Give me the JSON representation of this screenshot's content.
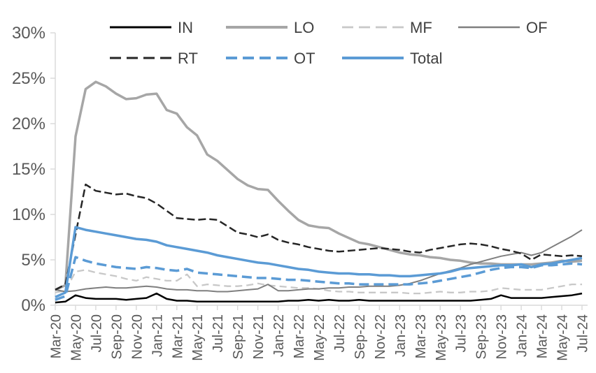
{
  "chart_data": {
    "type": "line",
    "title": "",
    "xlabel": "",
    "ylabel": "",
    "ylim": [
      0,
      30
    ],
    "y_tick_step": 5,
    "y_tick_suffix": "%",
    "grid": false,
    "legend_position": "top",
    "legend_rows": [
      [
        "IN",
        "LO",
        "MF",
        "OF"
      ],
      [
        "RT",
        "OT",
        "Total"
      ]
    ],
    "axis_color": "#D9D9D9",
    "tick_label_color": "#595959",
    "legend_text_color": "#404040",
    "background": "#FFFFFF",
    "x_tick_every": 2,
    "x": [
      "Mar-20",
      "Apr-20",
      "May-20",
      "Jun-20",
      "Jul-20",
      "Aug-20",
      "Sep-20",
      "Oct-20",
      "Nov-20",
      "Dec-20",
      "Jan-21",
      "Feb-21",
      "Mar-21",
      "Apr-21",
      "May-21",
      "Jun-21",
      "Jul-21",
      "Aug-21",
      "Sep-21",
      "Oct-21",
      "Nov-21",
      "Dec-21",
      "Jan-22",
      "Feb-22",
      "Mar-22",
      "Apr-22",
      "May-22",
      "Jun-22",
      "Jul-22",
      "Aug-22",
      "Sep-22",
      "Oct-22",
      "Nov-22",
      "Dec-22",
      "Jan-23",
      "Feb-23",
      "Mar-23",
      "Apr-23",
      "May-23",
      "Jun-23",
      "Jul-23",
      "Aug-23",
      "Sep-23",
      "Oct-23",
      "Nov-23",
      "Dec-23",
      "Jan-24",
      "Feb-24",
      "Mar-24",
      "Apr-24",
      "May-24",
      "Jun-24",
      "Jul-24"
    ],
    "series": [
      {
        "name": "IN",
        "color": "#000000",
        "style": "solid",
        "dash": "",
        "width": 2.5,
        "values": [
          0.3,
          0.4,
          1.1,
          0.8,
          0.7,
          0.7,
          0.7,
          0.6,
          0.7,
          0.8,
          1.3,
          0.7,
          0.5,
          0.5,
          0.4,
          0.4,
          0.4,
          0.4,
          0.4,
          0.4,
          0.4,
          0.4,
          0.4,
          0.5,
          0.5,
          0.6,
          0.5,
          0.6,
          0.5,
          0.5,
          0.6,
          0.5,
          0.5,
          0.5,
          0.5,
          0.5,
          0.5,
          0.5,
          0.5,
          0.5,
          0.5,
          0.5,
          0.6,
          0.7,
          1.1,
          0.8,
          0.8,
          0.8,
          0.8,
          0.9,
          1.0,
          1.1,
          1.3
        ]
      },
      {
        "name": "LO",
        "color": "#A6A6A6",
        "style": "solid",
        "dash": "",
        "width": 3.5,
        "values": [
          1.7,
          2.2,
          18.6,
          23.8,
          24.6,
          24.1,
          23.3,
          22.7,
          22.8,
          23.2,
          23.3,
          21.5,
          21.1,
          19.6,
          18.7,
          16.6,
          15.9,
          14.9,
          13.9,
          13.2,
          12.8,
          12.7,
          11.5,
          10.4,
          9.4,
          8.8,
          8.6,
          8.5,
          7.9,
          7.4,
          6.9,
          6.7,
          6.4,
          6.1,
          5.8,
          5.6,
          5.5,
          5.3,
          5.2,
          5.0,
          4.9,
          4.7,
          4.6,
          4.6,
          4.5,
          4.5,
          4.5,
          4.5,
          4.6,
          4.7,
          4.9,
          4.8,
          4.9
        ]
      },
      {
        "name": "MF",
        "color": "#C8C8C8",
        "style": "dashed",
        "dash": "10,6",
        "width": 2.3,
        "values": [
          1.4,
          1.6,
          3.7,
          3.9,
          3.6,
          3.4,
          3.2,
          2.9,
          2.7,
          3.1,
          2.9,
          2.7,
          2.7,
          3.4,
          2.1,
          2.3,
          2.2,
          2.1,
          2.1,
          2.2,
          2.4,
          2.2,
          2.1,
          2.0,
          1.9,
          1.9,
          1.8,
          1.6,
          1.5,
          1.5,
          1.4,
          1.4,
          1.4,
          1.4,
          1.4,
          1.3,
          1.3,
          1.4,
          1.5,
          1.4,
          1.4,
          1.5,
          1.5,
          1.6,
          1.9,
          1.8,
          1.7,
          1.7,
          1.7,
          1.9,
          2.1,
          2.3,
          2.3
        ]
      },
      {
        "name": "OF",
        "color": "#7F7F7F",
        "style": "solid",
        "dash": "",
        "width": 2,
        "values": [
          1.7,
          1.5,
          1.6,
          1.8,
          1.9,
          2.0,
          1.9,
          1.9,
          2.0,
          2.1,
          2.0,
          1.8,
          1.7,
          1.7,
          1.6,
          1.6,
          1.5,
          1.5,
          1.6,
          1.7,
          1.8,
          2.3,
          1.6,
          1.6,
          1.7,
          1.8,
          1.8,
          1.9,
          1.9,
          2.0,
          2.0,
          2.1,
          2.1,
          2.1,
          2.2,
          2.4,
          2.7,
          3.1,
          3.5,
          3.8,
          4.1,
          4.5,
          4.8,
          5.1,
          5.4,
          5.6,
          5.8,
          5.5,
          5.8,
          6.4,
          7.0,
          7.6,
          8.3
        ]
      },
      {
        "name": "RT",
        "color": "#262626",
        "style": "dashed",
        "dash": "11,5",
        "width": 2.5,
        "values": [
          1.7,
          2.3,
          7.8,
          13.3,
          12.6,
          12.4,
          12.2,
          12.3,
          12.0,
          11.8,
          11.2,
          10.4,
          9.6,
          9.5,
          9.4,
          9.5,
          9.4,
          8.7,
          8.0,
          7.8,
          7.5,
          7.8,
          7.2,
          6.9,
          6.7,
          6.4,
          6.2,
          6.0,
          5.9,
          6.0,
          6.1,
          6.2,
          6.3,
          6.2,
          6.1,
          5.9,
          5.8,
          6.1,
          6.3,
          6.5,
          6.7,
          6.8,
          6.7,
          6.5,
          6.2,
          6.0,
          5.7,
          5.0,
          5.6,
          5.5,
          5.4,
          5.5,
          5.4
        ]
      },
      {
        "name": "OT",
        "color": "#5B9BD5",
        "style": "dashed",
        "dash": "14,7",
        "width": 3.5,
        "values": [
          0.6,
          1.0,
          5.3,
          4.9,
          4.6,
          4.4,
          4.2,
          4.1,
          4.0,
          4.2,
          4.1,
          3.9,
          3.8,
          4.0,
          3.6,
          3.5,
          3.4,
          3.3,
          3.2,
          3.1,
          3.0,
          3.0,
          2.9,
          2.8,
          2.8,
          2.7,
          2.6,
          2.5,
          2.4,
          2.4,
          2.3,
          2.3,
          2.3,
          2.3,
          2.3,
          2.3,
          2.4,
          2.5,
          2.7,
          2.9,
          3.1,
          3.3,
          3.6,
          3.9,
          4.1,
          4.2,
          4.2,
          4.1,
          4.4,
          4.4,
          4.5,
          4.6,
          4.5
        ]
      },
      {
        "name": "Total",
        "color": "#5B9BD5",
        "style": "solid",
        "dash": "",
        "width": 3.5,
        "values": [
          0.9,
          1.4,
          8.6,
          8.3,
          8.1,
          7.9,
          7.7,
          7.5,
          7.3,
          7.2,
          7.0,
          6.6,
          6.4,
          6.2,
          6.0,
          5.8,
          5.5,
          5.3,
          5.1,
          4.9,
          4.7,
          4.6,
          4.4,
          4.2,
          4.0,
          3.9,
          3.7,
          3.6,
          3.5,
          3.5,
          3.4,
          3.4,
          3.3,
          3.3,
          3.2,
          3.2,
          3.3,
          3.4,
          3.5,
          3.7,
          4.0,
          4.1,
          4.2,
          4.3,
          4.4,
          4.4,
          4.5,
          4.2,
          4.5,
          4.6,
          4.8,
          5.0,
          5.2
        ]
      }
    ]
  }
}
